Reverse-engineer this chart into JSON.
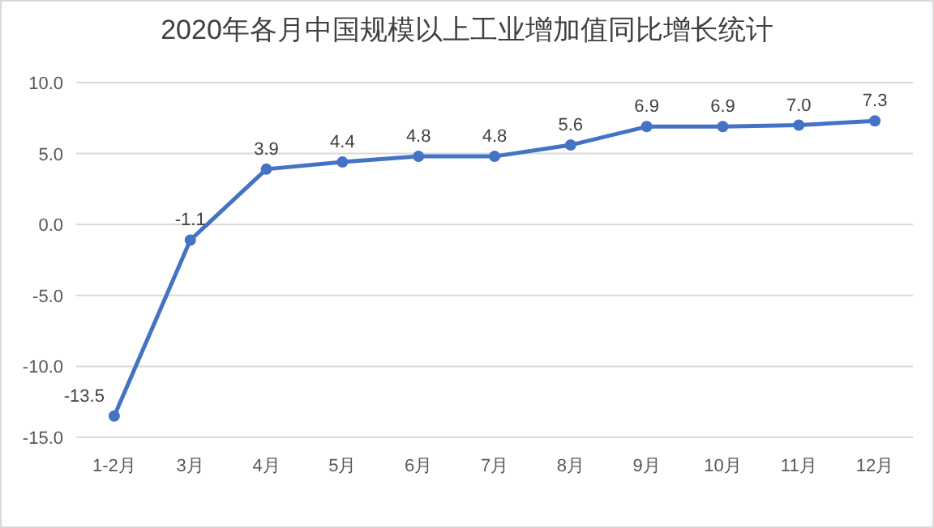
{
  "chart_data": {
    "type": "line",
    "title": "2020年各月中国规模以上工业增加值同比增长统计",
    "categories": [
      "1-2月",
      "3月",
      "4月",
      "5月",
      "6月",
      "7月",
      "8月",
      "9月",
      "10月",
      "11月",
      "12月"
    ],
    "values": [
      -13.5,
      -1.1,
      3.9,
      4.4,
      4.8,
      4.8,
      5.6,
      6.9,
      6.9,
      7.0,
      7.3
    ],
    "value_labels": [
      "-13.5",
      "-1.1",
      "3.9",
      "4.4",
      "4.8",
      "4.8",
      "5.6",
      "6.9",
      "6.9",
      "7.0",
      "7.3"
    ],
    "color": "#4472c4",
    "marker": "circle",
    "grid": "y",
    "ylim": [
      -15,
      10
    ],
    "yticks": [
      {
        "value": -15,
        "label": "-15.0"
      },
      {
        "value": -10,
        "label": "-10.0"
      },
      {
        "value": -5,
        "label": "-5.0"
      },
      {
        "value": 0,
        "label": "0.0"
      },
      {
        "value": 5,
        "label": "5.0"
      },
      {
        "value": 10,
        "label": "10.0"
      }
    ]
  }
}
